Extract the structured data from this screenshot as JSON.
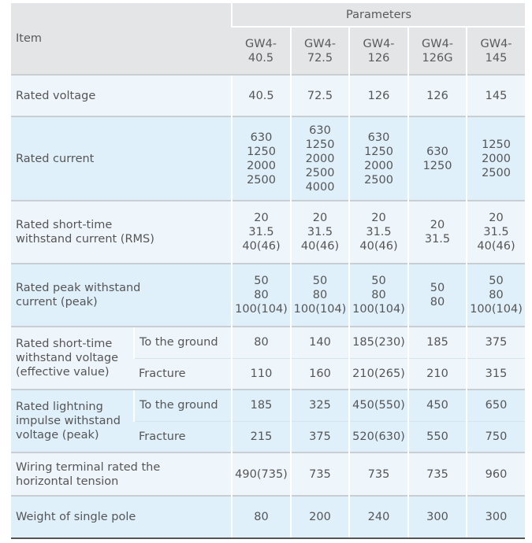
{
  "header": {
    "item": "Item",
    "parameters": "Parameters",
    "models": [
      "GW4-\n40.5",
      "GW4-\n72.5",
      "GW4-\n126",
      "GW4-\n126G",
      "GW4-\n145"
    ]
  },
  "rows": [
    {
      "label": "Rated voltage",
      "values": [
        "40.5",
        "72.5",
        "126",
        "126",
        "145"
      ]
    },
    {
      "label": "Rated current",
      "values": [
        "630\n1250\n2000\n2500",
        "630\n1250\n2000\n2500\n4000",
        "630\n1250\n2000\n2500",
        "630\n1250",
        "1250\n2000\n2500"
      ]
    },
    {
      "label": "Rated short-time\nwithstand current (RMS)",
      "values": [
        "20\n31.5\n40(46)",
        "20\n31.5\n40(46)",
        "20\n31.5\n40(46)",
        "20\n31.5",
        "20\n31.5\n40(46)"
      ]
    },
    {
      "label": "Rated peak withstand\ncurrent (peak)",
      "values": [
        "50\n80\n100(104)",
        "50\n80\n100(104)",
        "50\n80\n100(104)",
        "50\n80",
        "50\n80\n100(104)"
      ]
    }
  ],
  "split_rows": [
    {
      "label": "Rated short-time\nwithstand voltage\n(effective value)",
      "subs": [
        {
          "label": "To the ground",
          "values": [
            "80",
            "140",
            "185(230)",
            "185",
            "375"
          ]
        },
        {
          "label": "Fracture",
          "values": [
            "110",
            "160",
            "210(265)",
            "210",
            "315"
          ]
        }
      ]
    },
    {
      "label": "Rated lightning\nimpulse withstand\nvoltage (peak)",
      "subs": [
        {
          "label": "To the ground",
          "values": [
            "185",
            "325",
            "450(550)",
            "450",
            "650"
          ]
        },
        {
          "label": "Fracture",
          "values": [
            "215",
            "375",
            "520(630)",
            "550",
            "750"
          ]
        }
      ]
    }
  ],
  "tail_rows": [
    {
      "label": "Wiring terminal rated the\nhorizontal tension",
      "values": [
        "490(735)",
        "735",
        "735",
        "735",
        "960"
      ]
    },
    {
      "label": "Weight of single pole",
      "values": [
        "80",
        "200",
        "240",
        "300",
        "300"
      ]
    }
  ]
}
